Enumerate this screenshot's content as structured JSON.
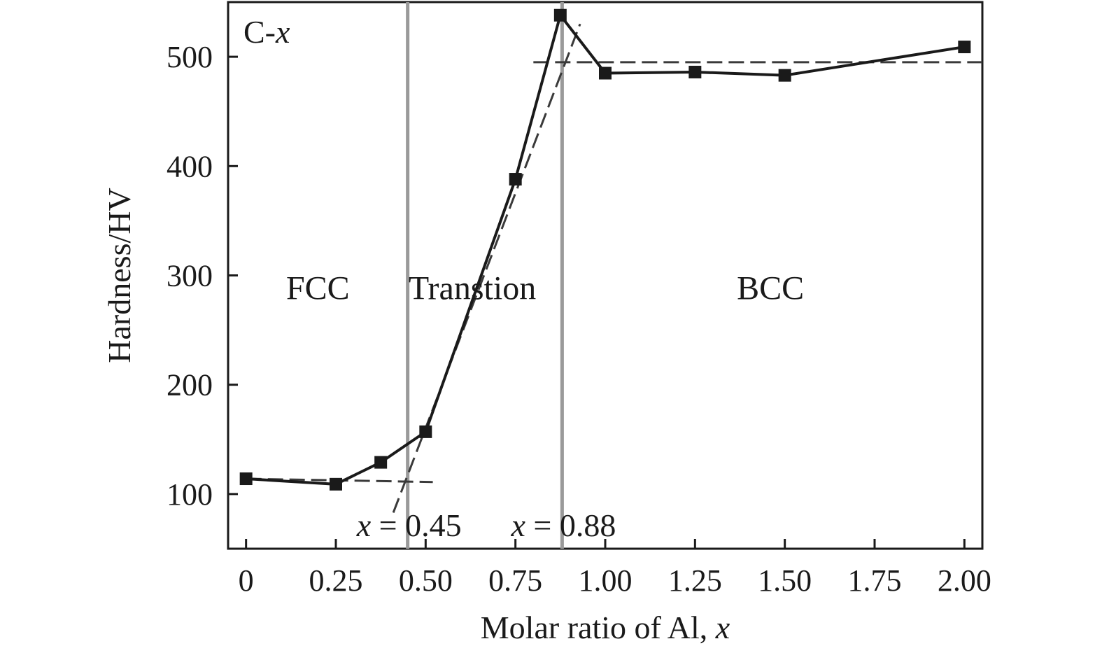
{
  "chart_data": {
    "type": "line",
    "panel_label": {
      "prefix": "C-",
      "var": "x"
    },
    "xlabel": {
      "text": "Molar ratio of Al, ",
      "var": "x"
    },
    "ylabel": "Hardness/HV",
    "xlim": [
      -0.05,
      2.05
    ],
    "ylim": [
      50,
      550
    ],
    "x_ticks": [
      0,
      0.25,
      0.5,
      0.75,
      1.0,
      1.25,
      1.5,
      1.75,
      2.0
    ],
    "x_tick_labels": [
      "0",
      "0.25",
      "0.50",
      "0.75",
      "1.00",
      "1.25",
      "1.50",
      "1.75",
      "2.00"
    ],
    "y_ticks": [
      100,
      200,
      300,
      400,
      500
    ],
    "y_tick_labels": [
      "100",
      "200",
      "300",
      "400",
      "500"
    ],
    "series": [
      {
        "x": [
          0,
          0.25,
          0.375,
          0.5,
          0.75,
          0.875,
          1.0,
          1.25,
          1.5,
          2.0
        ],
        "y": [
          114,
          109,
          129,
          157,
          388,
          538,
          485,
          486,
          483,
          509
        ],
        "color": "#1a1a1a",
        "marker": "square"
      }
    ],
    "fit_lines": [
      {
        "x": [
          0,
          0.52
        ],
        "y": [
          114,
          111
        ]
      },
      {
        "x": [
          0.41,
          0.93
        ],
        "y": [
          83,
          530
        ]
      },
      {
        "x": [
          0.8,
          2.05
        ],
        "y": [
          495,
          495
        ]
      }
    ],
    "vertical_lines": [
      {
        "x": 0.45,
        "var": "x",
        "label": " = 0.45"
      },
      {
        "x": 0.88,
        "var": "x",
        "label": " = 0.88"
      }
    ],
    "regions": [
      {
        "label": "FCC",
        "x": 0.2
      },
      {
        "label": "Transtion",
        "x": 0.63
      },
      {
        "label": "BCC",
        "x": 1.46
      }
    ],
    "region_label_y": 300
  }
}
